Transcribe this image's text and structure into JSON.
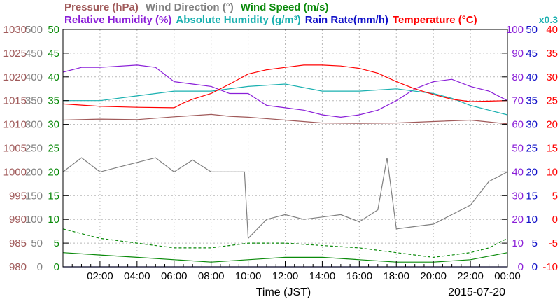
{
  "chart_data": {
    "type": "line",
    "date_label": "2015-07-20",
    "xlabel": "Time (JST)",
    "x_ticks": [
      "02:00",
      "04:00",
      "06:00",
      "08:00",
      "10:00",
      "12:00",
      "14:00",
      "16:00",
      "18:00",
      "20:00",
      "22:00",
      "00:00"
    ],
    "xlim_hours": [
      0,
      24
    ],
    "legend_row1": [
      {
        "name": "Pressure (hPa)",
        "color": "#a05a5a"
      },
      {
        "name": "Wind Direction (°)",
        "color": "#808080"
      },
      {
        "name": "Wind Speed (m/s)",
        "color": "#0a8a0a"
      }
    ],
    "legend_row2": [
      {
        "name": "Relative Humidity (%)",
        "color": "#8a1ed8"
      },
      {
        "name": "Absolute Humidity (g/m³)",
        "color": "#1ab0b0"
      },
      {
        "name": "Rain Rate(mm/h)",
        "color": "#1010c8"
      },
      {
        "name": "Temperature (°C)",
        "color": "#ff0000"
      }
    ],
    "abs_humidity_scale_note": "x0.3",
    "axes": [
      {
        "name": "Pressure (hPa)",
        "color": "#a05a5a",
        "ticks": [
          "1030",
          "1025",
          "1020",
          "1015",
          "1010",
          "1005",
          "1000",
          "995",
          "990",
          "985",
          "980"
        ]
      },
      {
        "name": "Wind Direction (°)",
        "color": "#808080",
        "ticks": [
          "500",
          "450",
          "400",
          "350",
          "300",
          "250",
          "200",
          "150",
          "100",
          "50",
          "0"
        ]
      },
      {
        "name": "Wind Speed (m/s)",
        "color": "#0a8a0a",
        "ticks": [
          "50",
          "45",
          "40",
          "35",
          "30",
          "25",
          "20",
          "15",
          "10",
          "5",
          "0"
        ]
      },
      {
        "name": "Relative Humidity (%)",
        "color": "#8a1ed8",
        "ticks": [
          "100",
          "90",
          "80",
          "70",
          "60",
          "50",
          "40",
          "30",
          "20",
          "10",
          "0"
        ]
      },
      {
        "name": "Rain Rate(mm/h)",
        "color": "#1010c8",
        "ticks": [
          "50",
          "45",
          "40",
          "35",
          "30",
          "25",
          "20",
          "15",
          "10",
          "5",
          "0"
        ]
      },
      {
        "name": "Temperature (°C)",
        "color": "#ff0000",
        "ticks": [
          "40",
          "35",
          "30",
          "25",
          "20",
          "15",
          "10",
          "5",
          "0",
          "-5",
          "-10"
        ]
      }
    ],
    "series": [
      {
        "name": "Pressure (hPa)",
        "color": "#a05a5a",
        "x": [
          0,
          2,
          4,
          6,
          8,
          9,
          10,
          12,
          14,
          16,
          18,
          20,
          22,
          24
        ],
        "y": [
          1010.9,
          1011.1,
          1011.0,
          1011.6,
          1012.1,
          1011.7,
          1011.5,
          1010.9,
          1010.3,
          1010.2,
          1010.3,
          1010.6,
          1010.9,
          1010.1
        ]
      },
      {
        "name": "Wind Direction (°)",
        "color": "#808080",
        "x": [
          0,
          1,
          2,
          3,
          4,
          5,
          6,
          7,
          8,
          9,
          9.8,
          10,
          11,
          12,
          13,
          14,
          15,
          16,
          17,
          17.5,
          18,
          19,
          20,
          21,
          22,
          23,
          24
        ],
        "y": [
          200,
          230,
          200,
          210,
          220,
          230,
          200,
          225,
          200,
          200,
          200,
          60,
          100,
          110,
          100,
          105,
          110,
          95,
          120,
          230,
          80,
          85,
          90,
          110,
          130,
          180,
          200
        ]
      },
      {
        "name": "Wind Speed (m/s)",
        "color": "#0a8a0a",
        "x": [
          0,
          2,
          4,
          6,
          8,
          10,
          12,
          14,
          16,
          18,
          20,
          22,
          24
        ],
        "y": [
          3,
          2.5,
          2,
          1.5,
          1,
          1.5,
          2,
          2,
          1.5,
          1,
          1,
          1.5,
          3
        ]
      },
      {
        "name": "Wind Speed gust (m/s)",
        "color": "#0a8a0a",
        "dashed": true,
        "x": [
          0,
          1,
          2,
          4,
          6,
          8,
          10,
          12,
          14,
          16,
          18,
          20,
          22,
          23,
          24
        ],
        "y": [
          8,
          7,
          6,
          5,
          4,
          4,
          5,
          5,
          4.5,
          4,
          3,
          2,
          3,
          4,
          6
        ]
      },
      {
        "name": "Relative Humidity (%)",
        "color": "#8a1ed8",
        "x": [
          0,
          1,
          2,
          4,
          5,
          6,
          7,
          8,
          9,
          10,
          11,
          12,
          13,
          14,
          15,
          16,
          17,
          18,
          19,
          20,
          21,
          22,
          23,
          24
        ],
        "y": [
          82,
          84,
          84,
          85,
          84,
          78,
          77,
          76,
          73,
          73,
          68,
          67,
          66,
          64,
          63,
          64,
          66,
          70,
          75,
          78,
          79,
          76,
          74,
          70
        ]
      },
      {
        "name": "Absolute Humidity (g/m³)",
        "color": "#1ab0b0",
        "x": [
          0,
          2,
          4,
          6,
          8,
          10,
          12,
          14,
          16,
          18,
          20,
          21,
          22,
          23,
          24
        ],
        "y": [
          70,
          70,
          72,
          74,
          74,
          76,
          77,
          74,
          74,
          75,
          73,
          71,
          68,
          66,
          64
        ]
      },
      {
        "name": "Rain Rate(mm/h)",
        "color": "#1010c8",
        "x": [
          0,
          24
        ],
        "y": [
          0,
          0
        ]
      },
      {
        "name": "Temperature (°C)",
        "color": "#ff0000",
        "x": [
          0,
          2,
          4,
          6,
          6.5,
          7,
          8,
          9,
          10,
          11,
          12,
          13,
          14,
          15,
          16,
          17,
          18,
          19,
          20,
          21,
          22,
          23,
          24
        ],
        "y": [
          24.3,
          23.8,
          23.6,
          23.5,
          24.5,
          25.3,
          26.5,
          28.5,
          30.6,
          31.5,
          32.0,
          32.5,
          32.5,
          32.3,
          31.8,
          30.8,
          29.0,
          27.5,
          26.3,
          25.3,
          24.8,
          24.9,
          25.0
        ]
      }
    ]
  }
}
